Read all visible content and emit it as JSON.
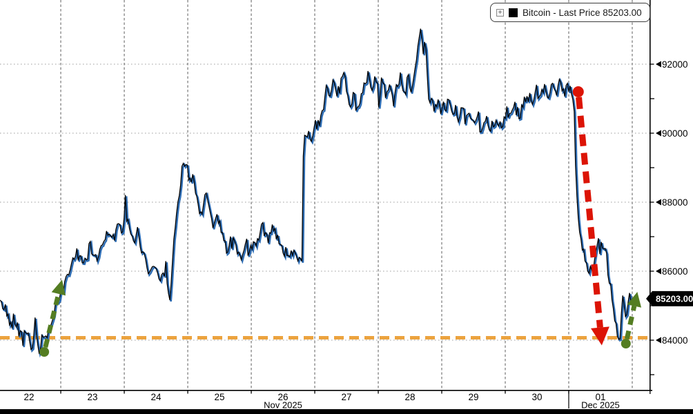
{
  "legend": {
    "expand_label": "+",
    "series_swatch_color": "#000000",
    "series_label": "Bitcoin - Last Price 85203.00"
  },
  "price_badge": {
    "value": "85203.00",
    "price": 85203,
    "bg_color": "#000000",
    "text_color": "#ffffff"
  },
  "axes": {
    "y": {
      "side": "right",
      "major_ticks": [
        92000,
        90000,
        88000,
        86000,
        84000
      ],
      "minor_ticks": [
        91000,
        89000,
        87000,
        85000,
        83000
      ],
      "tick_marker": "left-pointing-triangle"
    },
    "x": {
      "day_ticks": [
        {
          "label": "22",
          "t": 0.5
        },
        {
          "label": "23",
          "t": 1.5
        },
        {
          "label": "24",
          "t": 2.5
        },
        {
          "label": "25",
          "t": 3.5
        },
        {
          "label": "26",
          "t": 4.5
        },
        {
          "label": "27",
          "t": 5.5
        },
        {
          "label": "28",
          "t": 6.5
        },
        {
          "label": "29",
          "t": 7.5
        },
        {
          "label": "30",
          "t": 8.5
        },
        {
          "label": "01",
          "t": 9.5
        }
      ],
      "month_labels": [
        {
          "label": "Nov 2025",
          "t": 4.5
        },
        {
          "label": "Dec 2025",
          "t": 9.5
        }
      ],
      "day_boundaries": [
        1,
        2,
        3,
        4,
        5,
        6,
        7,
        8,
        9,
        10
      ],
      "month_separator_t": 9
    }
  },
  "annotations": {
    "support_line": {
      "price": 84000,
      "color": "#eca33e",
      "style": "dashed"
    },
    "arrows": [
      {
        "name": "crash-arrow",
        "direction": "down",
        "color": "#dc1405",
        "from": {
          "t": 9.15,
          "price": 91200
        },
        "to": {
          "t": 9.52,
          "price": 83850
        },
        "shaft_width": 9,
        "dash": "17 10",
        "dot_radius": 8,
        "head_len": 26,
        "head_width": 27
      },
      {
        "name": "rebound-arrow-nov22",
        "direction": "up",
        "color": "#547d22",
        "from": {
          "t": 0.74,
          "price": 83660
        },
        "to": {
          "t": 1.02,
          "price": 85750
        },
        "shaft_width": 7,
        "dash": "12 9",
        "dot_radius": 7,
        "head_len": 21,
        "head_width": 21
      },
      {
        "name": "rebound-arrow-dec01",
        "direction": "up",
        "color": "#547d22",
        "from": {
          "t": 9.9,
          "price": 83900
        },
        "to": {
          "t": 10.08,
          "price": 85400
        },
        "shaft_width": 7,
        "dash": "12 9",
        "dot_radius": 7,
        "head_len": 21,
        "head_width": 21
      }
    ]
  },
  "chart_data": {
    "type": "line",
    "title": "Bitcoin - Last Price",
    "last_price": 85203.0,
    "line_color_main": "#000000",
    "line_color_shadow": "#2e6db4",
    "x_unit": "days (0 = 2025-11-22 00:00)",
    "xlim": [
      0.043,
      10.272
    ],
    "ylim": [
      82560,
      93860
    ],
    "grid": "dotted horizontal every 2000, dashed vertical at day boundaries",
    "legend_position": "top-right",
    "points": [
      [
        0.043,
        85150
      ],
      [
        0.13,
        84900
      ],
      [
        0.21,
        84450
      ],
      [
        0.28,
        84650
      ],
      [
        0.37,
        84100
      ],
      [
        0.46,
        84350
      ],
      [
        0.53,
        83800
      ],
      [
        0.61,
        84250
      ],
      [
        0.67,
        83700
      ],
      [
        0.75,
        84050
      ],
      [
        0.83,
        84400
      ],
      [
        0.91,
        84900
      ],
      [
        1.0,
        85350
      ],
      [
        1.08,
        85650
      ],
      [
        1.16,
        86250
      ],
      [
        1.26,
        86550
      ],
      [
        1.35,
        86150
      ],
      [
        1.46,
        86700
      ],
      [
        1.57,
        86350
      ],
      [
        1.67,
        86900
      ],
      [
        1.76,
        87250
      ],
      [
        1.84,
        86850
      ],
      [
        1.91,
        87400
      ],
      [
        1.98,
        87100
      ],
      [
        2.02,
        88160
      ],
      [
        2.09,
        87000
      ],
      [
        2.16,
        86800
      ],
      [
        2.22,
        87200
      ],
      [
        2.27,
        86600
      ],
      [
        2.33,
        86300
      ],
      [
        2.41,
        85950
      ],
      [
        2.49,
        86150
      ],
      [
        2.57,
        85800
      ],
      [
        2.63,
        86050
      ],
      [
        2.72,
        85300
      ],
      [
        2.76,
        86300
      ],
      [
        2.82,
        87600
      ],
      [
        2.87,
        88400
      ],
      [
        2.91,
        89000
      ],
      [
        2.96,
        89260
      ],
      [
        3.0,
        88900
      ],
      [
        3.04,
        88500
      ],
      [
        3.09,
        88700
      ],
      [
        3.14,
        88100
      ],
      [
        3.2,
        87500
      ],
      [
        3.25,
        87900
      ],
      [
        3.28,
        88450
      ],
      [
        3.34,
        87800
      ],
      [
        3.39,
        87300
      ],
      [
        3.47,
        87600
      ],
      [
        3.54,
        87000
      ],
      [
        3.63,
        86700
      ],
      [
        3.7,
        87000
      ],
      [
        3.76,
        86600
      ],
      [
        3.85,
        86400
      ],
      [
        3.93,
        86800
      ],
      [
        4.01,
        86500
      ],
      [
        4.09,
        86900
      ],
      [
        4.17,
        87300
      ],
      [
        4.26,
        86900
      ],
      [
        4.34,
        87400
      ],
      [
        4.41,
        87000
      ],
      [
        4.48,
        86700
      ],
      [
        4.55,
        86500
      ],
      [
        4.61,
        86350
      ],
      [
        4.67,
        86600
      ],
      [
        4.74,
        86450
      ],
      [
        4.8,
        86450
      ],
      [
        4.81,
        88200
      ],
      [
        4.82,
        89600
      ],
      [
        4.83,
        89900
      ],
      [
        4.87,
        89700
      ],
      [
        4.9,
        90100
      ],
      [
        4.93,
        89800
      ],
      [
        4.96,
        90050
      ],
      [
        5.0,
        90350
      ],
      [
        5.04,
        90150
      ],
      [
        5.1,
        90550
      ],
      [
        5.15,
        90900
      ],
      [
        5.2,
        91500
      ],
      [
        5.24,
        91050
      ],
      [
        5.29,
        91450
      ],
      [
        5.35,
        90900
      ],
      [
        5.4,
        91400
      ],
      [
        5.46,
        91650
      ],
      [
        5.51,
        91200
      ],
      [
        5.57,
        90800
      ],
      [
        5.62,
        91100
      ],
      [
        5.67,
        90600
      ],
      [
        5.73,
        91000
      ],
      [
        5.78,
        91500
      ],
      [
        5.84,
        91700
      ],
      [
        5.89,
        91300
      ],
      [
        5.95,
        91600
      ],
      [
        6.0,
        91200
      ],
      [
        6.07,
        91500
      ],
      [
        6.13,
        91000
      ],
      [
        6.18,
        91400
      ],
      [
        6.24,
        90900
      ],
      [
        6.29,
        91300
      ],
      [
        6.35,
        91600
      ],
      [
        6.4,
        90950
      ],
      [
        6.46,
        91500
      ],
      [
        6.51,
        91200
      ],
      [
        6.57,
        91800
      ],
      [
        6.61,
        92300
      ],
      [
        6.64,
        92700
      ],
      [
        6.67,
        93100
      ],
      [
        6.71,
        92200
      ],
      [
        6.74,
        92660
      ],
      [
        6.77,
        91700
      ],
      [
        6.8,
        90750
      ],
      [
        6.85,
        91050
      ],
      [
        6.89,
        90700
      ],
      [
        6.93,
        91000
      ],
      [
        6.98,
        90600
      ],
      [
        7.02,
        90900
      ],
      [
        7.07,
        90700
      ],
      [
        7.11,
        91000
      ],
      [
        7.16,
        90500
      ],
      [
        7.22,
        90800
      ],
      [
        7.27,
        90400
      ],
      [
        7.33,
        90700
      ],
      [
        7.38,
        90300
      ],
      [
        7.43,
        90600
      ],
      [
        7.5,
        90200
      ],
      [
        7.57,
        90500
      ],
      [
        7.63,
        90150
      ],
      [
        7.7,
        90450
      ],
      [
        7.76,
        90100
      ],
      [
        7.83,
        90400
      ],
      [
        7.89,
        90050
      ],
      [
        7.96,
        90350
      ],
      [
        8.02,
        90700
      ],
      [
        8.09,
        90400
      ],
      [
        8.15,
        90800
      ],
      [
        8.22,
        90500
      ],
      [
        8.28,
        90900
      ],
      [
        8.35,
        91200
      ],
      [
        8.41,
        90900
      ],
      [
        8.48,
        91300
      ],
      [
        8.54,
        91000
      ],
      [
        8.61,
        91400
      ],
      [
        8.67,
        91100
      ],
      [
        8.74,
        91450
      ],
      [
        8.8,
        91200
      ],
      [
        8.87,
        91500
      ],
      [
        8.93,
        91150
      ],
      [
        9.0,
        91350
      ],
      [
        9.04,
        91150
      ],
      [
        9.07,
        91000
      ],
      [
        9.09,
        90600
      ],
      [
        9.1,
        89800
      ],
      [
        9.11,
        89000
      ],
      [
        9.12,
        88300
      ],
      [
        9.14,
        87800
      ],
      [
        9.16,
        87400
      ],
      [
        9.18,
        87000
      ],
      [
        9.21,
        86700
      ],
      [
        9.23,
        86900
      ],
      [
        9.25,
        86500
      ],
      [
        9.28,
        86200
      ],
      [
        9.32,
        85900
      ],
      [
        9.35,
        86100
      ],
      [
        9.37,
        85850
      ],
      [
        9.4,
        86200
      ],
      [
        9.43,
        86700
      ],
      [
        9.47,
        86900
      ],
      [
        9.49,
        86600
      ],
      [
        9.51,
        86750
      ],
      [
        9.54,
        86400
      ],
      [
        9.58,
        86700
      ],
      [
        9.6,
        86300
      ],
      [
        9.62,
        86000
      ],
      [
        9.65,
        85700
      ],
      [
        9.67,
        85400
      ],
      [
        9.7,
        85000
      ],
      [
        9.72,
        84600
      ],
      [
        9.75,
        84300
      ],
      [
        9.78,
        84100
      ],
      [
        9.8,
        84020
      ],
      [
        9.83,
        84700
      ],
      [
        9.85,
        85300
      ],
      [
        9.87,
        85000
      ],
      [
        9.89,
        84800
      ],
      [
        9.91,
        84550
      ],
      [
        9.93,
        85000
      ],
      [
        9.96,
        85250
      ],
      [
        9.98,
        84950
      ],
      [
        10.0,
        85100
      ],
      [
        10.02,
        85203
      ]
    ]
  }
}
